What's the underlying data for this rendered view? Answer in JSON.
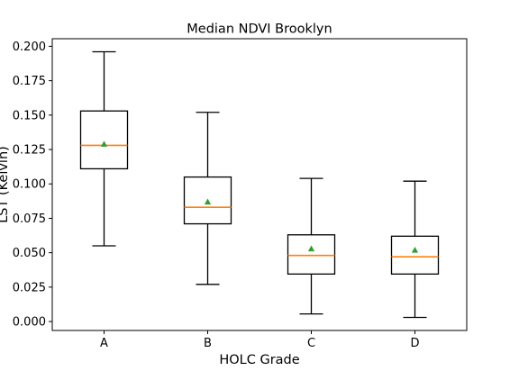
{
  "chart_data": {
    "type": "box",
    "title": "Median NDVI Brooklyn",
    "xlabel": "HOLC Grade",
    "ylabel": "LST (Kelvin)",
    "categories": [
      "A",
      "B",
      "C",
      "D"
    ],
    "boxes": [
      {
        "category": "A",
        "whisker_low": 0.055,
        "q1": 0.111,
        "median": 0.128,
        "q3": 0.153,
        "whisker_high": 0.196,
        "mean": 0.129
      },
      {
        "category": "B",
        "whisker_low": 0.027,
        "q1": 0.071,
        "median": 0.083,
        "q3": 0.105,
        "whisker_high": 0.152,
        "mean": 0.087
      },
      {
        "category": "C",
        "whisker_low": 0.0055,
        "q1": 0.0345,
        "median": 0.048,
        "q3": 0.063,
        "whisker_high": 0.104,
        "mean": 0.053
      },
      {
        "category": "D",
        "whisker_low": 0.003,
        "q1": 0.0345,
        "median": 0.047,
        "q3": 0.062,
        "whisker_high": 0.102,
        "mean": 0.052
      }
    ],
    "yticks": [
      "0.000",
      "0.025",
      "0.050",
      "0.075",
      "0.100",
      "0.125",
      "0.150",
      "0.175",
      "0.200"
    ],
    "ytick_values": [
      0,
      0.025,
      0.05,
      0.075,
      0.1,
      0.125,
      0.15,
      0.175,
      0.2
    ],
    "ylim": [
      -0.0065,
      0.2055
    ],
    "grid": false,
    "legend": "none",
    "colors": {
      "box": "#000000",
      "median": "#ff7f0e",
      "mean": "#2ca02c"
    }
  }
}
